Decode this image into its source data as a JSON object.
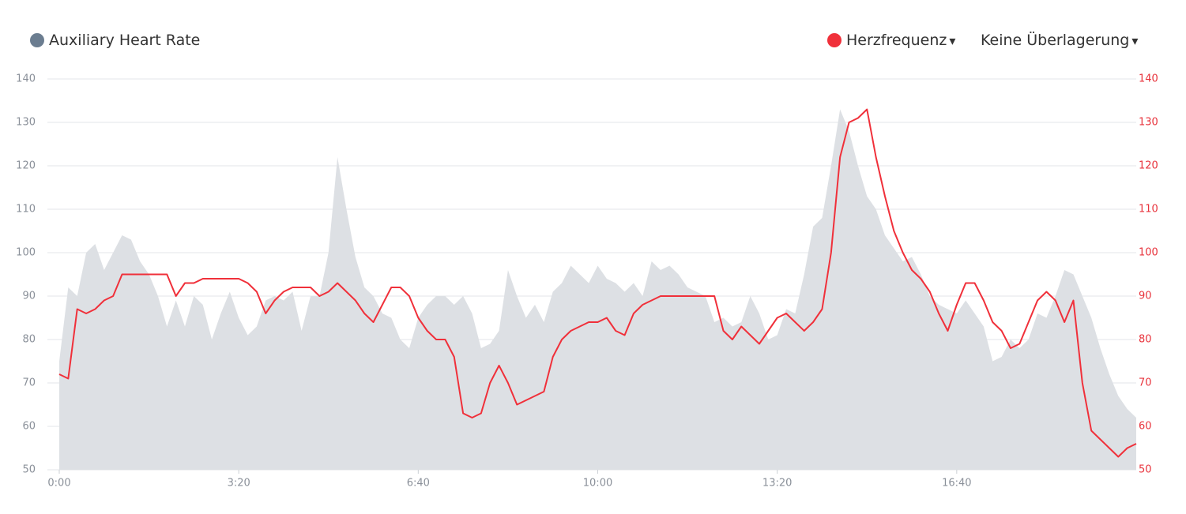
{
  "chart_data": {
    "type": "combo",
    "overlay_label": "Keine Überlagerung",
    "x": [
      0,
      10,
      20,
      30,
      40,
      50,
      60,
      70,
      80,
      90,
      100,
      110,
      120,
      130,
      140,
      150,
      160,
      170,
      180,
      190,
      200,
      210,
      220,
      230,
      240,
      250,
      260,
      270,
      280,
      290,
      300,
      310,
      320,
      330,
      340,
      350,
      360,
      370,
      380,
      390,
      400,
      410,
      420,
      430,
      440,
      450,
      460,
      470,
      480,
      490,
      500,
      510,
      520,
      530,
      540,
      550,
      560,
      570,
      580,
      590,
      600,
      610,
      620,
      630,
      640,
      650,
      660,
      670,
      680,
      690,
      700,
      710,
      720,
      730,
      740,
      750,
      760,
      770,
      780,
      790,
      800,
      810,
      820,
      830,
      840,
      850,
      860,
      870,
      880,
      890,
      900,
      910,
      920,
      930,
      940,
      950,
      960,
      970,
      980,
      990,
      1000,
      1010,
      1020,
      1030,
      1040,
      1050,
      1060,
      1070,
      1080,
      1090,
      1100,
      1110,
      1120,
      1130,
      1140,
      1150,
      1160,
      1170,
      1180,
      1190,
      1200
    ],
    "xlim": [
      0,
      1200
    ],
    "xticks": [
      {
        "value": 0,
        "label": "0:00"
      },
      {
        "value": 200,
        "label": "3:20"
      },
      {
        "value": 400,
        "label": "6:40"
      },
      {
        "value": 600,
        "label": "10:00"
      },
      {
        "value": 800,
        "label": "13:20"
      },
      {
        "value": 1000,
        "label": "16:40"
      }
    ],
    "ylim": [
      50,
      140
    ],
    "yticks": [
      50,
      60,
      70,
      80,
      90,
      100,
      110,
      120,
      130,
      140
    ],
    "y2lim": [
      50,
      140
    ],
    "y2ticks": [
      50,
      60,
      70,
      80,
      90,
      100,
      110,
      120,
      130,
      140
    ],
    "grid": true,
    "series": [
      {
        "name": "Auxiliary Heart Rate",
        "type": "area",
        "color": "#dde0e4",
        "legend_color": "#6b7d90",
        "axis": "y",
        "values": [
          75,
          92,
          90,
          100,
          102,
          96,
          100,
          104,
          103,
          98,
          95,
          90,
          83,
          89,
          83,
          90,
          88,
          80,
          86,
          91,
          85,
          81,
          83,
          89,
          90,
          89,
          91,
          82,
          90,
          90,
          100,
          122,
          110,
          99,
          92,
          90,
          86,
          85,
          80,
          78,
          85,
          88,
          90,
          90,
          88,
          90,
          86,
          78,
          79,
          82,
          96,
          90,
          85,
          88,
          84,
          91,
          93,
          97,
          95,
          93,
          97,
          94,
          93,
          91,
          93,
          90,
          98,
          96,
          97,
          95,
          92,
          91,
          90,
          84,
          85,
          83,
          84,
          90,
          86,
          80,
          81,
          87,
          86,
          95,
          106,
          108,
          120,
          133,
          128,
          120,
          113,
          110,
          104,
          101,
          98,
          99,
          95,
          90,
          88,
          87,
          86,
          89,
          86,
          83,
          75,
          76,
          80,
          78,
          80,
          86,
          85,
          90,
          96,
          95,
          90,
          85,
          78,
          72,
          67,
          64,
          62
        ]
      },
      {
        "name": "Herzfrequenz",
        "type": "line",
        "color": "#f0303a",
        "axis": "y2",
        "values": [
          72,
          71,
          87,
          86,
          87,
          89,
          90,
          95,
          95,
          95,
          95,
          95,
          95,
          90,
          93,
          93,
          94,
          94,
          94,
          94,
          94,
          93,
          91,
          86,
          89,
          91,
          92,
          92,
          92,
          90,
          91,
          93,
          91,
          89,
          86,
          84,
          88,
          92,
          92,
          90,
          85,
          82,
          80,
          80,
          76,
          63,
          62,
          63,
          70,
          74,
          70,
          65,
          66,
          67,
          68,
          76,
          80,
          82,
          83,
          84,
          84,
          85,
          82,
          81,
          86,
          88,
          89,
          90,
          90,
          90,
          90,
          90,
          90,
          90,
          82,
          80,
          83,
          81,
          79,
          82,
          85,
          86,
          84,
          82,
          84,
          87,
          100,
          122,
          130,
          131,
          133,
          122,
          113,
          105,
          100,
          96,
          94,
          91,
          86,
          82,
          88,
          93,
          93,
          89,
          84,
          82,
          78,
          79,
          84,
          89,
          91,
          89,
          84,
          89,
          70,
          59,
          57,
          55,
          53,
          55,
          56
        ]
      }
    ]
  }
}
